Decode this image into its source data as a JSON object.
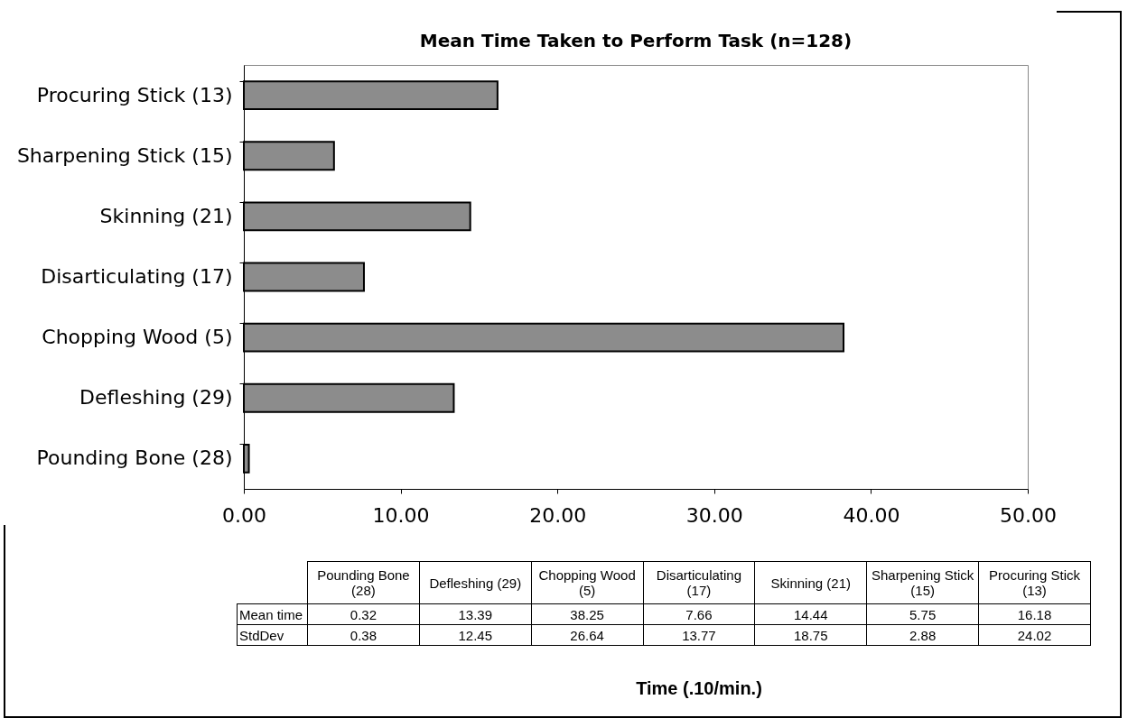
{
  "chart_data": {
    "type": "bar",
    "orientation": "horizontal",
    "title": "Mean Time Taken to Perform Task (n=128)",
    "categories": [
      "Procuring Stick (13)",
      "Sharpening Stick (15)",
      "Skinning (21)",
      "Disarticulating (17)",
      "Chopping Wood (5)",
      "Defleshing (29)",
      "Pounding Bone (28)"
    ],
    "values": [
      16.18,
      5.75,
      14.44,
      7.66,
      38.25,
      13.39,
      0.32
    ],
    "color": "#8c8c8c",
    "xlim": [
      0,
      50
    ],
    "xticks": [
      {
        "value": 0,
        "label": "0.00"
      },
      {
        "value": 10,
        "label": "10.00"
      },
      {
        "value": 20,
        "label": "20.00"
      },
      {
        "value": 30,
        "label": "30.00"
      },
      {
        "value": 40,
        "label": "40.00"
      },
      {
        "value": 50,
        "label": "50.00"
      }
    ],
    "grid": false,
    "annotations": [
      "Mean time",
      "0.32",
      "13.39",
      "38.25",
      "7.66",
      "14.44",
      "5.75",
      "16.18",
      "StdDev",
      "0.38",
      "12.45",
      "26.64",
      "13.77",
      "18.75",
      "2.88",
      "24.02",
      "Time (.10/min.)"
    ]
  }
}
